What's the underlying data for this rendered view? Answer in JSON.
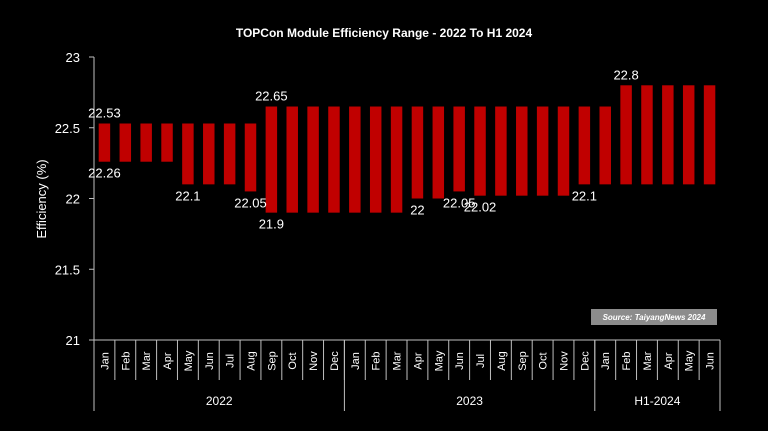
{
  "chart_data": {
    "type": "bar",
    "subtype": "floating-range",
    "title": "TOPCon Module Efficiency Range - 2022 To H1 2024",
    "ylabel": "Efficiency (%)",
    "xlabel": "",
    "ylim": [
      21,
      23
    ],
    "yticks": [
      "21",
      "21.5",
      "22",
      "22.5",
      "23"
    ],
    "bar_color": "#C00000",
    "groups": [
      {
        "label": "2022",
        "start": 0,
        "count": 12
      },
      {
        "label": "2023",
        "start": 12,
        "count": 12
      },
      {
        "label": "H1-2024",
        "start": 24,
        "count": 6
      }
    ],
    "categories": [
      "Jan",
      "Feb",
      "Mar",
      "Apr",
      "May",
      "Jun",
      "Jul",
      "Aug",
      "Sep",
      "Oct",
      "Nov",
      "Dec",
      "Jan",
      "Feb",
      "Mar",
      "Apr",
      "May",
      "Jun",
      "Jul",
      "Aug",
      "Sep",
      "Oct",
      "Nov",
      "Dec",
      "Jan",
      "Feb",
      "Mar",
      "Apr",
      "May",
      "Jun"
    ],
    "low": [
      22.26,
      22.26,
      22.26,
      22.26,
      22.1,
      22.1,
      22.1,
      22.05,
      21.9,
      21.9,
      21.9,
      21.9,
      21.9,
      21.9,
      21.9,
      22,
      22,
      22.05,
      22.02,
      22.02,
      22.02,
      22.02,
      22.02,
      22.1,
      22.1,
      22.1,
      22.1,
      22.1,
      22.1,
      22.1
    ],
    "high": [
      22.53,
      22.53,
      22.53,
      22.53,
      22.53,
      22.53,
      22.53,
      22.53,
      22.65,
      22.65,
      22.65,
      22.65,
      22.65,
      22.65,
      22.65,
      22.65,
      22.65,
      22.65,
      22.65,
      22.65,
      22.65,
      22.65,
      22.65,
      22.65,
      22.65,
      22.8,
      22.8,
      22.8,
      22.8,
      22.8
    ],
    "data_labels": [
      {
        "index": 0,
        "text": "22.53",
        "pos": "top"
      },
      {
        "index": 0,
        "text": "22.26",
        "pos": "bottom"
      },
      {
        "index": 4,
        "text": "22.1",
        "pos": "bottom"
      },
      {
        "index": 7,
        "text": "22.05",
        "pos": "bottom"
      },
      {
        "index": 8,
        "text": "22.65",
        "pos": "top"
      },
      {
        "index": 8,
        "text": "21.9",
        "pos": "bottom"
      },
      {
        "index": 15,
        "text": "22",
        "pos": "bottom"
      },
      {
        "index": 17,
        "text": "22.05",
        "pos": "bottom"
      },
      {
        "index": 18,
        "text": "22.02",
        "pos": "bottom"
      },
      {
        "index": 23,
        "text": "22.1",
        "pos": "bottom"
      },
      {
        "index": 25,
        "text": "22.8",
        "pos": "top"
      }
    ],
    "source": "Source: TaiyangNews 2024"
  }
}
